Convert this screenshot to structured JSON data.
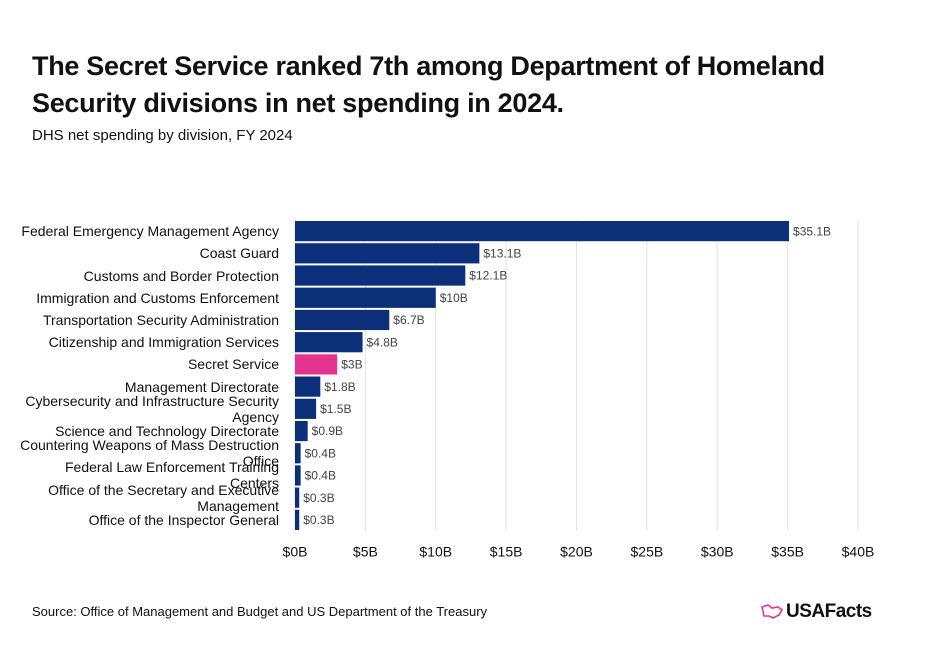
{
  "chart_data": {
    "type": "bar",
    "orientation": "horizontal",
    "title": "The Secret Service ranked 7th among Department of Homeland Security divisions in net spending in 2024.",
    "subtitle": "DHS net spending by division, FY 2024",
    "source": "Source: Office of Management and Budget and US Department of the Treasury",
    "brand": "USAFacts",
    "categories": [
      "Federal Emergency Management Agency",
      "Coast Guard",
      "Customs and Border Protection",
      "Immigration and Customs Enforcement",
      "Transportation Security Administration",
      "Citizenship and Immigration Services",
      "Secret Service",
      "Management Directorate",
      "Cybersecurity and Infrastructure Security Agency",
      "Science and Technology Directorate",
      "Countering Weapons of Mass Destruction Office",
      "Federal Law Enforcement Training Centers",
      "Office of the Secretary and Executive Management",
      "Office of the Inspector General"
    ],
    "values": [
      35.1,
      13.1,
      12.1,
      10,
      6.7,
      4.8,
      3,
      1.8,
      1.5,
      0.9,
      0.4,
      0.4,
      0.3,
      0.3
    ],
    "value_labels": [
      "$35.1B",
      "$13.1B",
      "$12.1B",
      "$10B",
      "$6.7B",
      "$4.8B",
      "$3B",
      "$1.8B",
      "$1.5B",
      "$0.9B",
      "$0.4B",
      "$0.4B",
      "$0.3B",
      "$0.3B"
    ],
    "colors": [
      "#0b2f78",
      "#0b2f78",
      "#0b2f78",
      "#0b2f78",
      "#0b2f78",
      "#0b2f78",
      "#e5348f",
      "#0b2f78",
      "#0b2f78",
      "#0b2f78",
      "#0b2f78",
      "#0b2f78",
      "#0b2f78",
      "#0b2f78"
    ],
    "xlim": [
      0,
      40
    ],
    "xticks": [
      {
        "value": 0,
        "label": "$0B"
      },
      {
        "value": 5,
        "label": "$5B"
      },
      {
        "value": 10,
        "label": "$10B"
      },
      {
        "value": 15,
        "label": "$15B"
      },
      {
        "value": 20,
        "label": "$20B"
      },
      {
        "value": 25,
        "label": "$25B"
      },
      {
        "value": 30,
        "label": "$30B"
      },
      {
        "value": 35,
        "label": "$35B"
      },
      {
        "value": 40,
        "label": "$40B"
      }
    ],
    "grid": true
  }
}
